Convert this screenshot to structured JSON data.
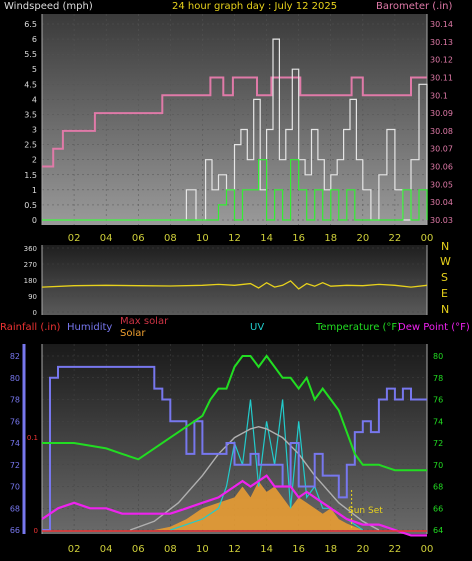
{
  "header": {
    "left": "Windspeed (mph)",
    "center": "24 hour graph day : July 12 2025",
    "right": "Barometer (.in)"
  },
  "labels": {
    "compass": [
      "N",
      "W",
      "S",
      "E",
      "N"
    ],
    "rain": "Rainfall (.in)",
    "humidity": "Humidity",
    "max_solar": "Max solar",
    "solar": "Solar",
    "uv": "UV",
    "temperature": "Temperature (°F)",
    "dewpoint": "Dew Point (°F)",
    "sunset": "Sun Set"
  },
  "colors": {
    "wind_avg": "#33ee33",
    "wind_gust": "#e6e6e6",
    "barometer": "#e07aa8",
    "direction": "#e8d21c",
    "humidity": "#7777ee",
    "temperature": "#22dd22",
    "dewpoint": "#ee22ee",
    "uv": "#22cccc",
    "solar": "#f0a030",
    "max_solar": "#b0b0b0",
    "rain": "#ee3333"
  },
  "chart_data": [
    {
      "type": "line",
      "name": "wind-barometer",
      "x_ticks": [
        "02",
        "04",
        "06",
        "08",
        "10",
        "12",
        "14",
        "16",
        "18",
        "20",
        "22",
        "00"
      ],
      "y_left_ticks": [
        "0",
        "0.5",
        "1",
        "1.5",
        "2",
        "2.5",
        "3",
        "3.5",
        "4",
        "4.5",
        "5",
        "5.5",
        "6",
        "6.5"
      ],
      "y_right_ticks": [
        "30.03",
        "30.04",
        "30.05",
        "30.06",
        "30.07",
        "30.08",
        "30.09",
        "30.1",
        "30.11",
        "30.12",
        "30.13",
        "30.14"
      ],
      "ylim_left": [
        0,
        6.5
      ],
      "ylim_right": [
        30.03,
        30.14
      ],
      "xlim": [
        0,
        24
      ],
      "series": [
        {
          "key": "barometer",
          "axis": "right",
          "x": [
            0,
            0.7,
            1.3,
            2.2,
            3.3,
            4.5,
            5.6,
            6.5,
            7.5,
            8.8,
            9.6,
            10.5,
            11.3,
            11.9,
            12.6,
            13.4,
            14.3,
            15.2,
            16.1,
            17.0,
            17.8,
            18.6,
            19.3,
            20.0,
            20.8,
            21.7,
            22.5,
            23.0,
            23.5,
            24
          ],
          "y": [
            30.06,
            30.07,
            30.08,
            30.08,
            30.09,
            30.09,
            30.09,
            30.09,
            30.1,
            30.1,
            30.1,
            30.11,
            30.1,
            30.11,
            30.11,
            30.1,
            30.11,
            30.11,
            30.1,
            30.1,
            30.1,
            30.1,
            30.11,
            30.1,
            30.1,
            30.1,
            30.1,
            30.11,
            30.11,
            30.11
          ]
        },
        {
          "key": "wind_gust",
          "axis": "left",
          "x": [
            0,
            8.0,
            8.4,
            9.0,
            9.6,
            10.2,
            10.6,
            11.0,
            11.5,
            12.0,
            12.4,
            12.8,
            13.2,
            13.6,
            14.0,
            14.4,
            14.8,
            15.2,
            15.6,
            16.0,
            16.4,
            16.8,
            17.2,
            17.6,
            18.0,
            18.4,
            18.8,
            19.2,
            19.6,
            20.0,
            20.5,
            21.0,
            21.5,
            22.0,
            22.5,
            23.0,
            23.5,
            24
          ],
          "y": [
            0,
            0,
            0,
            1,
            0,
            2,
            1,
            1.5,
            1,
            2.5,
            3,
            2,
            4,
            1,
            3,
            6,
            2,
            3,
            5,
            2,
            1.5,
            3,
            2,
            1,
            1.5,
            2,
            3,
            4,
            2,
            1,
            0,
            1.5,
            3,
            1,
            0,
            2,
            4.5,
            0
          ]
        },
        {
          "key": "wind_avg",
          "axis": "left",
          "x": [
            0,
            8.0,
            8.5,
            9.5,
            10.5,
            11.0,
            11.5,
            12.0,
            12.5,
            13.0,
            13.5,
            14.0,
            14.5,
            15.0,
            15.5,
            16.0,
            16.5,
            17.0,
            17.5,
            18.0,
            18.5,
            19.0,
            19.5,
            20.0,
            21.0,
            22.0,
            22.5,
            23.0,
            23.5,
            24
          ],
          "y": [
            0,
            0,
            0,
            0,
            0,
            0.5,
            1,
            0,
            1,
            1,
            2,
            0,
            1,
            0,
            2,
            1,
            0,
            1,
            0,
            1,
            0,
            1,
            0,
            0,
            0,
            0,
            1,
            0,
            1,
            0
          ]
        }
      ]
    },
    {
      "type": "line",
      "name": "wind-direction",
      "y_left_ticks": [
        "360",
        "270",
        "180",
        "90",
        "0"
      ],
      "ylim": [
        0,
        360
      ],
      "series": [
        {
          "key": "direction",
          "x": [
            0,
            2,
            4,
            6,
            8,
            10,
            11,
            12,
            13,
            13.5,
            14,
            14.5,
            15,
            15.5,
            16,
            16.5,
            17,
            17.5,
            18,
            19,
            20,
            21,
            22,
            23,
            24
          ],
          "y": [
            140,
            148,
            150,
            148,
            146,
            150,
            155,
            150,
            160,
            135,
            165,
            140,
            150,
            175,
            130,
            160,
            145,
            165,
            145,
            150,
            148,
            155,
            150,
            140,
            150
          ]
        }
      ]
    },
    {
      "type": "line",
      "name": "temperature-humidity-solar",
      "x_ticks": [
        "02",
        "04",
        "06",
        "08",
        "10",
        "12",
        "14",
        "16",
        "18",
        "20",
        "22",
        "00"
      ],
      "y_left_ticks": [
        "82",
        "80",
        "78",
        "76",
        "74",
        "72",
        "70",
        "68",
        "66"
      ],
      "y_right_ticks": [
        "80",
        "78",
        "76",
        "74",
        "72",
        "70",
        "68",
        "66",
        "64"
      ],
      "rain_ticks": [
        "0.1",
        "0"
      ],
      "ylim_humidity": [
        66,
        82
      ],
      "ylim_temperature": [
        64,
        80
      ],
      "ylim_rain": [
        0,
        0.2
      ],
      "series": [
        {
          "key": "humidity",
          "axis": "left",
          "x": [
            0,
            0.5,
            1.0,
            1.5,
            6.0,
            7.0,
            7.5,
            8.0,
            9.0,
            9.5,
            10.0,
            10.5,
            11.5,
            12.0,
            13.0,
            13.5,
            14.0,
            15.0,
            15.5,
            16.0,
            17.0,
            17.5,
            18.5,
            19.0,
            19.5,
            20.0,
            20.5,
            21.0,
            21.5,
            22.0,
            22.5,
            23.0,
            24
          ],
          "y": [
            66,
            80,
            81,
            81,
            81,
            79,
            78,
            76,
            73,
            76,
            73,
            73,
            74,
            72,
            73,
            72,
            72,
            70,
            74,
            70,
            73,
            71,
            69,
            72,
            75,
            76,
            75,
            78,
            79,
            78,
            79,
            78,
            78
          ]
        },
        {
          "key": "temperature",
          "axis": "right",
          "x": [
            0,
            2,
            4,
            5,
            6,
            7,
            8,
            9,
            10,
            10.5,
            11,
            11.5,
            12,
            12.5,
            13,
            13.5,
            14,
            14.5,
            15,
            15.5,
            16,
            16.5,
            17,
            17.5,
            18,
            18.5,
            19,
            19.5,
            20,
            21,
            22,
            23,
            24
          ],
          "y": [
            72,
            72,
            71.5,
            71,
            70.5,
            71.5,
            72.5,
            73.5,
            74.5,
            76,
            77,
            77,
            79,
            80,
            80,
            79,
            80,
            79,
            78,
            78,
            77,
            78,
            76,
            77,
            76,
            75,
            73,
            71,
            70,
            70,
            69.5,
            69.5,
            69.5
          ]
        },
        {
          "key": "dewpoint",
          "axis": "right",
          "x": [
            0,
            1,
            2,
            3,
            4,
            5,
            6,
            7,
            8,
            9,
            10,
            11,
            12,
            12.5,
            13,
            13.5,
            14,
            14.5,
            15,
            15.5,
            16,
            16.5,
            17,
            17.5,
            18,
            18.5,
            19,
            20,
            21,
            22,
            23,
            24
          ],
          "y": [
            65,
            66,
            66.5,
            66,
            66,
            65.5,
            65.5,
            65.5,
            65.5,
            66,
            66.5,
            67,
            68,
            68.5,
            68,
            68.5,
            69,
            68,
            68,
            68,
            67,
            67.5,
            67,
            66.5,
            66,
            65.5,
            65,
            64.5,
            64.5,
            64,
            63.5,
            63.5
          ]
        },
        {
          "key": "max_solar",
          "axis": "right",
          "x": [
            5.5,
            7,
            8.5,
            10,
            11,
            12,
            13,
            13.5,
            14,
            15,
            16,
            17,
            18.5,
            20,
            21
          ],
          "y": [
            64,
            64.8,
            66.5,
            69,
            71,
            72.5,
            73.3,
            73.5,
            73.3,
            72.5,
            71,
            69,
            66.5,
            64.8,
            64
          ]
        },
        {
          "key": "solar",
          "axis": "right",
          "x": [
            7,
            8,
            9,
            10,
            11,
            12,
            12.5,
            13,
            13.5,
            14,
            14.5,
            15,
            15.5,
            16,
            16.5,
            17,
            17.5,
            18,
            18.5,
            19,
            19.5,
            20
          ],
          "y": [
            64,
            64.3,
            65,
            66,
            66.5,
            67,
            68,
            67,
            68.5,
            67.5,
            68,
            67,
            66,
            67,
            66.5,
            66,
            65.5,
            66,
            65,
            64.6,
            64.3,
            64
          ]
        },
        {
          "key": "uv",
          "axis": "right",
          "x": [
            8,
            9,
            10,
            11,
            11.5,
            12,
            12.5,
            13,
            13.5,
            14,
            14.5,
            15,
            15.5,
            16,
            16.5,
            17,
            17.5,
            18,
            19,
            20
          ],
          "y": [
            64,
            64.5,
            65,
            66,
            68,
            72,
            70,
            76,
            68,
            74,
            70,
            76,
            66,
            74,
            67,
            68,
            66,
            66,
            65,
            64
          ]
        }
      ],
      "annotations": [
        "Sun Set"
      ]
    }
  ]
}
